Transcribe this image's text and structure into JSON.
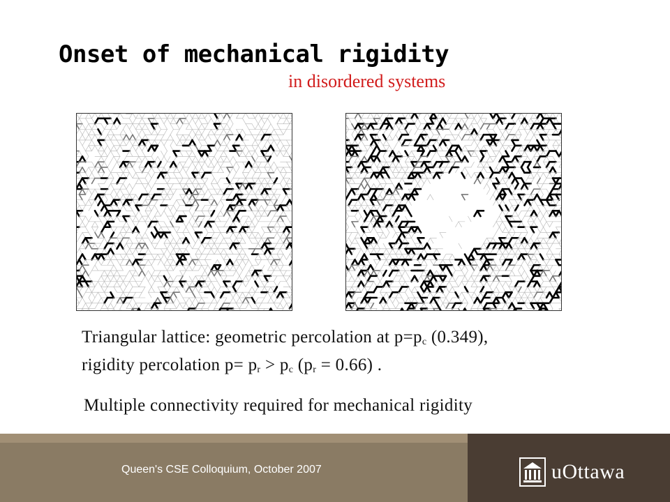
{
  "slide": {
    "title": "Onset of mechanical rigidity",
    "subtitle": "in disordered systems",
    "caption": {
      "line1_prefix": "Triangular lattice: geometric percolation at p=p",
      "line1_sub": "c",
      "line1_suffix": " (0.349),",
      "line2_a": "rigidity percolation p= p",
      "line2_sub1": "r",
      "line2_b": " > p",
      "line2_sub2": "c",
      "line2_c": " (p",
      "line2_sub3": "r",
      "line2_d": " = 0.66) .",
      "line3": "Multiple connectivity required for mechanical rigidity"
    },
    "footer": {
      "text": "Queen's CSE Colloquium, October 2007",
      "logo_text": "uOttawa"
    }
  },
  "colors": {
    "subtitle_red": "#d11b1b",
    "footer_band": "#8a7b64",
    "footer_brand": "#4a3d33"
  },
  "icons": {
    "logo_mark": "building-icon"
  }
}
